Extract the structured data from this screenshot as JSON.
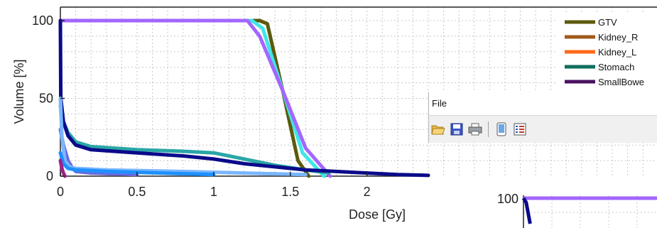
{
  "chart_data": {
    "type": "line",
    "title": "",
    "xlabel": "Dose [Gy]",
    "ylabel": "Volume [%]",
    "xlim": [
      0,
      2.4
    ],
    "ylim": [
      0,
      105
    ],
    "x_ticks": [
      "0",
      "0.5",
      "1",
      "1.5",
      "2"
    ],
    "y_ticks": [
      "0",
      "50",
      "100"
    ],
    "grid": true,
    "legend": {
      "position": "top-right",
      "entries": [
        {
          "label": "GTV",
          "color": "#5c5a0c"
        },
        {
          "label": "Kidney_R",
          "color": "#a05a1a"
        },
        {
          "label": "Kidney_L",
          "color": "#ff6a1a"
        },
        {
          "label": "Stomach",
          "color": "#0f6e5e"
        },
        {
          "label": "SmallBowe",
          "color": "#4a1060"
        },
        {
          "label": "",
          "color": "#a0208a"
        }
      ]
    },
    "series": [
      {
        "color": "#5c5a0c",
        "x": [
          0,
          1.3,
          1.35,
          1.45,
          1.55,
          1.62
        ],
        "y": [
          100,
          100,
          98,
          55,
          10,
          0
        ]
      },
      {
        "color": "#3fe6e6",
        "x": [
          0,
          1.25,
          1.32,
          1.45,
          1.58,
          1.72
        ],
        "y": [
          100,
          100,
          95,
          55,
          15,
          0
        ]
      },
      {
        "color": "#a366ff",
        "x": [
          0,
          1.22,
          1.3,
          1.45,
          1.6,
          1.76
        ],
        "y": [
          100,
          100,
          90,
          55,
          18,
          0
        ]
      },
      {
        "color": "#2aa6a6",
        "x": [
          0,
          0.02,
          0.05,
          0.1,
          0.2,
          0.5,
          0.8,
          1.0,
          1.2,
          1.4,
          1.6,
          1.75
        ],
        "y": [
          45,
          35,
          28,
          22,
          19,
          17,
          16,
          15,
          11,
          7,
          4,
          2
        ]
      },
      {
        "color": "#0a0a8a",
        "x": [
          0,
          0.003,
          0.02,
          0.05,
          0.1,
          0.2,
          0.5,
          0.8,
          1.0,
          1.2,
          1.4,
          1.6,
          1.8,
          2.0,
          2.2,
          2.4
        ],
        "y": [
          100,
          50,
          35,
          26,
          20,
          17,
          15,
          13,
          11,
          8,
          6,
          4,
          3,
          2,
          1,
          0.5
        ]
      },
      {
        "color": "#6a6ae0",
        "x": [
          0,
          0.02,
          0.05,
          0.08,
          0.1,
          0.2,
          0.5
        ],
        "y": [
          30,
          20,
          10,
          5,
          3,
          2,
          1
        ]
      },
      {
        "color": "#7ab6ff",
        "x": [
          0,
          0.01,
          0.03,
          0.06,
          0.1,
          0.3,
          0.8,
          1.2,
          1.6
        ],
        "y": [
          50,
          25,
          10,
          6,
          5,
          4,
          3,
          2,
          1
        ]
      },
      {
        "color": "#1e90ff",
        "x": [
          0,
          0.02,
          0.05,
          0.1,
          0.3,
          1.0
        ],
        "y": [
          15,
          8,
          5,
          4,
          3,
          1
        ]
      },
      {
        "color": "#a0208a",
        "x": [
          0,
          0.01,
          0.02,
          0.03
        ],
        "y": [
          10,
          5,
          2,
          0
        ]
      }
    ]
  },
  "window": {
    "menu": {
      "file": "File"
    },
    "toolbar": [
      {
        "icon": "folder-open-icon"
      },
      {
        "icon": "save-icon"
      },
      {
        "icon": "print-icon"
      },
      {
        "icon": "phone-view-icon"
      },
      {
        "icon": "list-view-icon"
      }
    ]
  },
  "mini_chart": {
    "type": "line",
    "y_ticks": [
      "100"
    ],
    "series": [
      {
        "color": "#a366ff",
        "x": [
          0,
          1
        ],
        "y": [
          100,
          100
        ]
      },
      {
        "color": "#0a0a8a",
        "x": [
          0,
          0.02,
          0.05
        ],
        "y": [
          100,
          95,
          70
        ]
      }
    ]
  }
}
